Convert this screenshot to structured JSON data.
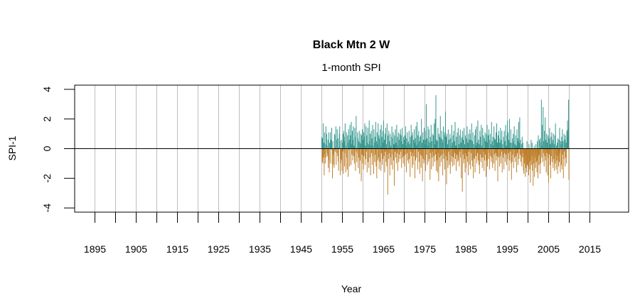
{
  "chart_data": {
    "type": "bar",
    "title": "Black Mtn 2 W",
    "subtitle": "1-month SPI",
    "xlabel": "Year",
    "ylabel": "SPI-1",
    "ylim": [
      -4,
      4
    ],
    "xlim": [
      1890,
      2024
    ],
    "y_ticks": [
      -4,
      -2,
      0,
      2,
      4
    ],
    "x_ticks": [
      1895,
      1900,
      1905,
      1910,
      1915,
      1920,
      1925,
      1930,
      1935,
      1940,
      1945,
      1950,
      1955,
      1960,
      1965,
      1970,
      1975,
      1980,
      1985,
      1990,
      1995,
      2000,
      2005,
      2010,
      2015
    ],
    "x_tick_labels": [
      "1895",
      "1905",
      "1915",
      "1925",
      "1935",
      "1945",
      "1955",
      "1965",
      "1975",
      "1985",
      "1995",
      "2005",
      "2015"
    ],
    "grid": "vertical lines every 5 years",
    "colors": {
      "positive": "#35978f",
      "negative": "#bf812d",
      "grid": "#bebebe"
    },
    "start": "1950-01",
    "frequency": "monthly",
    "values": [
      0.8,
      -0.9,
      0.7,
      -1.0,
      1.7,
      -0.6,
      0.4,
      -1.8,
      1.1,
      -0.4,
      -1.0,
      0.3,
      1.5,
      -0.6,
      1.0,
      0.2,
      -0.3,
      -0.5,
      0.6,
      -1.3,
      1.1,
      -0.8,
      -1.6,
      0.4,
      0.3,
      1.1,
      -1.0,
      0.6,
      0.3,
      1.4,
      -0.1,
      -2.0,
      0.5,
      -0.4,
      -1.1,
      -0.9,
      -1.3,
      1.0,
      0.9,
      -0.2,
      0.1,
      1.5,
      -1.1,
      -0.3,
      0.6,
      1.3,
      -0.5,
      0.7,
      -0.9,
      -1.5,
      0.1,
      1.0,
      1.5,
      0.5,
      -1.8,
      -1.0,
      -0.7,
      0.6,
      -0.8,
      -1.5,
      0.4,
      -0.2,
      1.0,
      -1.7,
      1.2,
      0.5,
      -1.2,
      0.8,
      1.7,
      -0.3,
      -1.6,
      0.2,
      1.1,
      -0.6,
      -1.4,
      0.9,
      0.4,
      -1.9,
      1.3,
      -0.1,
      0.6,
      -1.2,
      1.6,
      0.3,
      0.9,
      -1.1,
      1.8,
      0.3,
      -0.4,
      1.2,
      -0.8,
      0.6,
      1.5,
      -0.5,
      0.2,
      -1.0,
      1.4,
      0.8,
      -1.5,
      -0.2,
      2.2,
      0.1,
      -0.9,
      -0.3,
      1.1,
      0.7,
      -1.3,
      0.5,
      -0.6,
      1.2,
      -1.7,
      0.4,
      -0.8,
      1.0,
      0.3,
      -2.2,
      0.9,
      -0.4,
      1.3,
      -1.0,
      0.6,
      -1.4,
      1.1,
      -0.5,
      0.8,
      1.7,
      -1.1,
      0.2,
      -0.7,
      1.5,
      -0.2,
      0.9,
      -1.6,
      0.4,
      1.4,
      -0.9,
      0.3,
      -1.3,
      1.9,
      0.5,
      -0.6,
      1.0,
      -1.8,
      0.2,
      1.2,
      -0.3,
      0.7,
      -1.1,
      1.6,
      0.2,
      -0.5,
      -1.7,
      1.3,
      0.4,
      -0.9,
      0.8,
      -0.4,
      1.8,
      -1.2,
      0.5,
      -2.0,
      1.1,
      0.3,
      -0.8,
      1.7,
      -0.6,
      0.9,
      -1.4,
      0.7,
      -0.9,
      1.3,
      0.2,
      -1.5,
      1.6,
      -0.3,
      0.8,
      -1.1,
      1.2,
      -0.7,
      0.4,
      1.9,
      -0.5,
      0.6,
      -1.6,
      1.0,
      -0.2,
      1.4,
      -0.9,
      0.3,
      -1.2,
      1.7,
      -0.4,
      -3.1,
      0.9,
      -0.7,
      1.2,
      -0.3,
      0.5,
      -1.8,
      1.0,
      -0.6,
      0.2,
      -1.1,
      0.8,
      1.5,
      -0.4,
      -1.4,
      0.7,
      1.1,
      -0.8,
      0.3,
      -2.5,
      0.9,
      -0.2,
      1.3,
      -0.6,
      0.4,
      -1.0,
      1.6,
      -0.3,
      0.8,
      -1.5,
      0.2,
      1.1,
      -0.9,
      0.6,
      -0.4,
      1.0,
      -0.7,
      1.3,
      -0.2,
      0.9,
      -1.3,
      0.5,
      1.4,
      -0.6,
      0.3,
      -1.0,
      0.8,
      -0.5,
      0.6,
      -1.2,
      0.9,
      -0.4,
      1.5,
      0.2,
      -1.6,
      0.7,
      -0.3,
      1.1,
      -0.8,
      0.4,
      -1.0,
      0.5,
      1.2,
      -0.7,
      0.3,
      -1.9,
      0.8,
      -0.2,
      1.6,
      -0.5,
      0.9,
      -1.3,
      1.1,
      -0.3,
      -1.1,
      0.6,
      -0.5,
      1.3,
      0.4,
      -2.0,
      0.7,
      -0.8,
      1.5,
      0.2,
      -0.6,
      1.8,
      0.3,
      -1.4,
      0.9,
      -0.2,
      1.2,
      -0.9,
      0.5,
      -1.7,
      0.8,
      -0.4,
      0.9,
      -1.3,
      2.0,
      -0.5,
      0.4,
      -2.2,
      1.1,
      -0.7,
      0.6,
      -1.0,
      1.4,
      0.3,
      -0.8,
      0.6,
      -1.5,
      1.2,
      3.0,
      -0.4,
      0.7,
      -1.1,
      0.2,
      1.5,
      -0.9,
      0.5,
      1.3,
      -0.7,
      0.4,
      -2.1,
      0.8,
      -0.3,
      1.6,
      -1.4,
      0.5,
      -0.6,
      1.0,
      -0.2,
      -1.2,
      0.9,
      -0.5,
      1.7,
      -0.9,
      0.3,
      2.0,
      -0.4,
      3.6,
      -1.5,
      0.6,
      -0.8,
      0.5,
      -1.6,
      1.4,
      -0.3,
      -2.2,
      1.0,
      -0.6,
      0.8,
      -1.2,
      2.2,
      -0.5,
      0.7,
      -0.9,
      1.2,
      -0.4,
      0.6,
      -1.8,
      0.4,
      1.5,
      -0.7,
      -0.3,
      1.1,
      -1.4,
      0.9,
      2.5,
      -0.5,
      0.8,
      -2.4,
      1.0,
      -0.8,
      0.3,
      -1.3,
      1.3,
      -0.2,
      0.6,
      -1.1,
      -0.4,
      1.0,
      -1.7,
      0.7,
      0.2,
      -0.9,
      1.6,
      -0.5,
      0.4,
      -1.2,
      0.9,
      -0.6,
      1.2,
      -1.1,
      0.5,
      -0.3,
      1.8,
      -0.7,
      0.2,
      -1.5,
      0.8,
      -0.4,
      1.1,
      -0.9,
      -0.5,
      1.4,
      -0.8,
      0.3,
      -1.2,
      0.9,
      -0.2,
      1.3,
      -0.6,
      0.4,
      -2.0,
      0.7,
      0.8,
      -2.9,
      1.2,
      -0.4,
      0.6,
      -1.0,
      1.4,
      -0.7,
      0.3,
      -1.6,
      0.9,
      -0.3,
      -1.3,
      0.7,
      -0.5,
      1.5,
      -0.9,
      0.4,
      -1.8,
      1.0,
      -0.2,
      0.6,
      -1.1,
      1.3,
      1.0,
      -1.4,
      0.6,
      -0.3,
      1.7,
      -0.8,
      0.5,
      -1.2,
      1.1,
      -2.0,
      0.3,
      -0.6,
      -0.7,
      0.9,
      -1.6,
      1.3,
      0.2,
      -0.5,
      1.5,
      -1.0,
      0.4,
      -0.3,
      1.9,
      -0.8,
      0.6,
      -1.1,
      0.3,
      -1.7,
      1.2,
      -0.4,
      0.8,
      -0.9,
      1.6,
      -0.6,
      0.2,
      -1.3,
      1.4,
      -0.6,
      0.9,
      -0.2,
      -1.5,
      0.7,
      -0.8,
      1.1,
      -0.4,
      0.5,
      -1.9,
      1.0,
      -0.8,
      1.6,
      -1.2,
      0.4,
      0.9,
      -0.7,
      1.3,
      -0.3,
      -1.4,
      0.6,
      1.0,
      -0.5,
      0.3,
      -0.9,
      1.8,
      -0.6,
      0.5,
      -1.3,
      0.8,
      0.2,
      -1.0,
      1.5,
      -0.4,
      0.7,
      -1.5,
      0.6,
      -0.3,
      1.1,
      -0.8,
      1.7,
      -0.5,
      0.4,
      -2.2,
      0.9,
      -0.6,
      1.2,
      0.7,
      -1.2,
      0.4,
      -0.5,
      1.4,
      -1.0,
      0.6,
      -0.2,
      1.2,
      -1.6,
      0.3,
      -0.4,
      -0.6,
      0.8,
      -1.4,
      1.2,
      -0.3,
      0.5,
      -0.9,
      1.6,
      -0.4,
      0.2,
      -1.1,
      0.9,
      1.9,
      -0.7,
      1.1,
      -0.3,
      0.6,
      -1.5,
      2.0,
      -0.8,
      0.4,
      -0.2,
      1.3,
      -1.0,
      -2.1,
      0.4,
      -0.9,
      0.7,
      -0.4,
      1.0,
      -1.3,
      0.5,
      1.5,
      -0.6,
      0.3,
      -0.9,
      0.9,
      -0.5,
      0.2,
      -1.6,
      1.3,
      -0.3,
      0.7,
      -1.1,
      0.5,
      1.8,
      -0.7,
      0.4,
      2.1,
      -0.4,
      0.6,
      -0.9,
      -0.5,
      0.3,
      -1.2,
      0.8,
      -0.6,
      0.4,
      -0.3,
      -1.5,
      -1.7,
      -0.6,
      -1.0,
      -0.3,
      -1.9,
      -0.8,
      -1.3,
      -0.5,
      -1.6,
      0.5,
      -1.1,
      -0.7,
      -1.2,
      -0.4,
      -1.8,
      0.3,
      -0.9,
      -1.4,
      -0.6,
      -2.3,
      -0.8,
      0.6,
      -1.1,
      -0.5,
      0.4,
      -1.5,
      -0.7,
      -2.5,
      -0.3,
      -1.0,
      0.2,
      -1.9,
      -0.6,
      -0.4,
      -1.3,
      0.3,
      -0.9,
      -0.3,
      -1.6,
      0.5,
      -0.8,
      -2.0,
      0.9,
      -0.5,
      -1.1,
      0.6,
      -0.4,
      -1.7,
      0.7,
      -1.0,
      0.4,
      3.3,
      -0.6,
      0.2,
      1.6,
      -0.9,
      2.8,
      -0.3,
      0.5,
      -1.2,
      1.2,
      -0.5,
      2.1,
      -0.8,
      0.6,
      -1.6,
      1.0,
      -0.3,
      0.4,
      -1.8,
      0.9,
      -0.6,
      -2.3,
      0.7,
      -0.4,
      1.4,
      -1.1,
      0.3,
      -2.0,
      0.8,
      -0.5,
      1.1,
      -0.9,
      0.4,
      0.6,
      -1.3,
      1.0,
      -0.7,
      0.3,
      -1.5,
      0.9,
      -1.0,
      1.7,
      -0.4,
      -1.4,
      0.2,
      -0.8,
      0.4,
      -1.7,
      0.7,
      -0.5,
      -1.2,
      0.6,
      -0.9,
      1.4,
      -0.3,
      -1.6,
      0.5,
      0.3,
      -1.1,
      0.8,
      -1.4,
      1.3,
      -0.4,
      0.5,
      -2.0,
      -0.7,
      1.0,
      -0.2,
      0.6,
      -1.2,
      0.9,
      -0.6,
      0.4,
      -1.0,
      1.2,
      0.7,
      1.9,
      1.3,
      0.8,
      3.3,
      -2.1
    ]
  }
}
